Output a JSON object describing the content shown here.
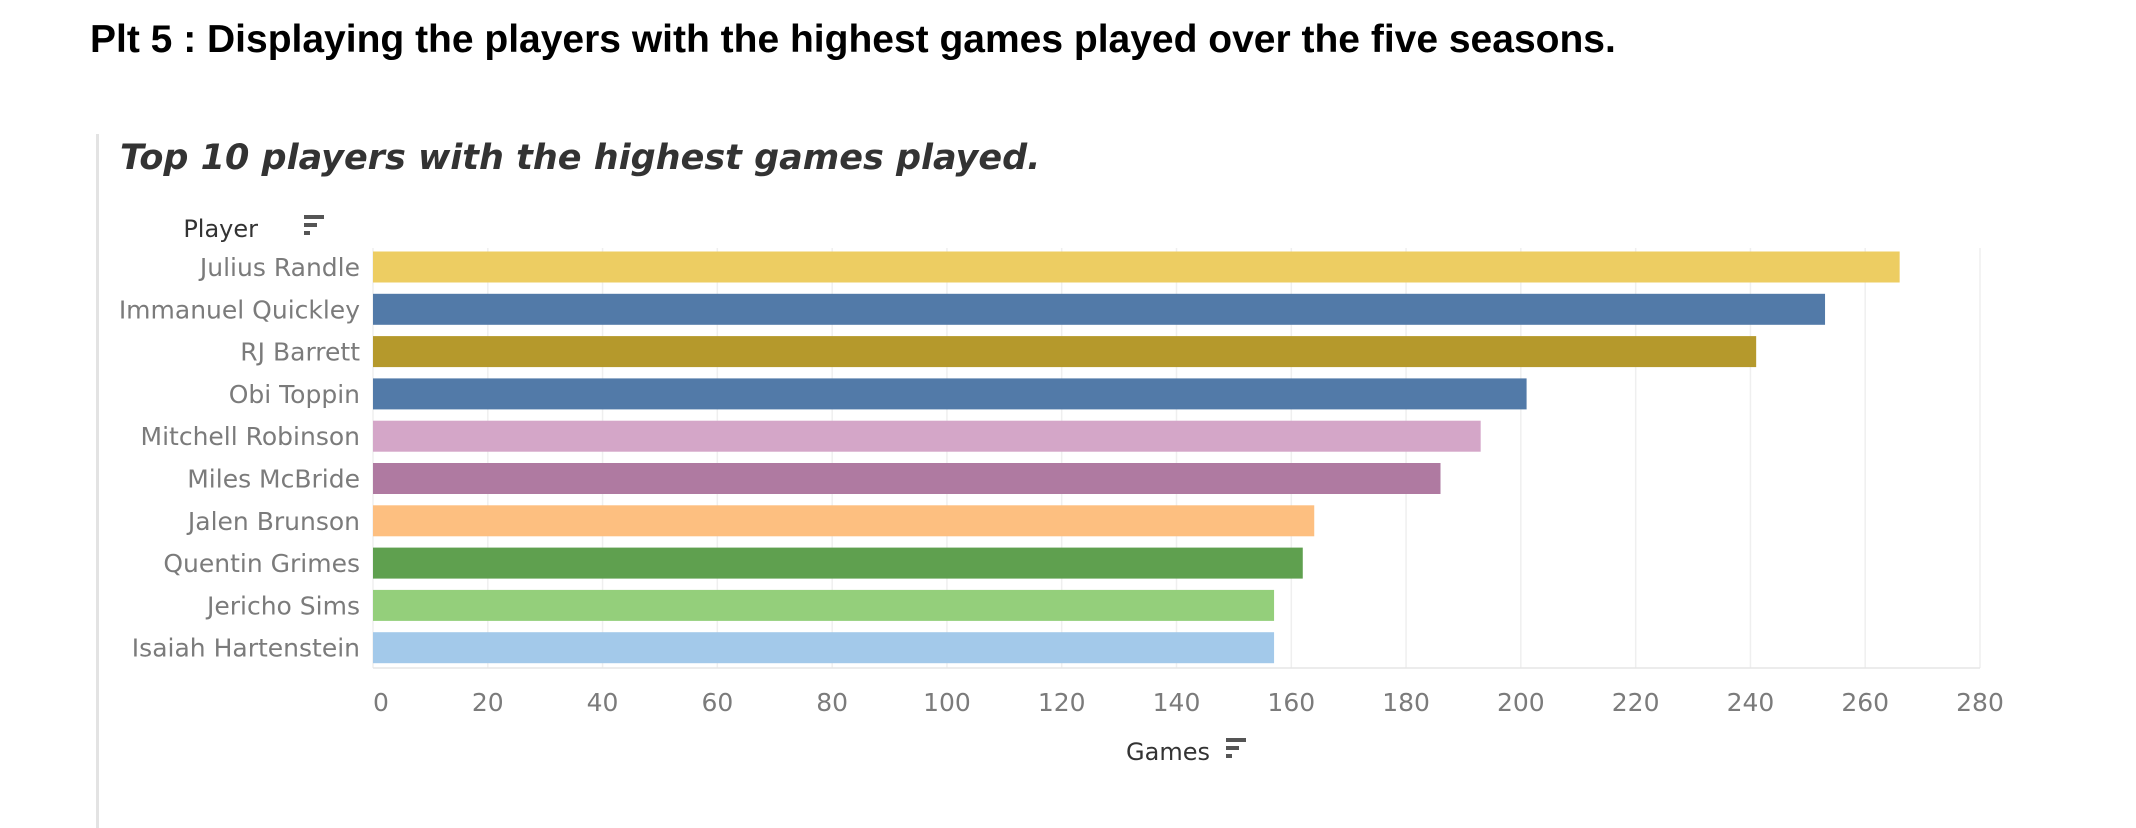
{
  "page": {
    "heading": "Plt 5 : Displaying the players with the highest games played over the five seasons."
  },
  "chart_data": {
    "type": "bar",
    "orientation": "horizontal",
    "title": "Top 10 players with the highest games played.",
    "ylabel": "Player",
    "xlabel": "Games",
    "categories": [
      "Julius Randle",
      "Immanuel Quickley",
      "RJ Barrett",
      "Obi Toppin",
      "Mitchell Robinson",
      "Miles McBride",
      "Jalen Brunson",
      "Quentin Grimes",
      "Jericho Sims",
      "Isaiah Hartenstein"
    ],
    "values": [
      266,
      253,
      241,
      201,
      193,
      186,
      164,
      162,
      157,
      157
    ],
    "colors": [
      "#EDCD62",
      "#527AA8",
      "#B5992C",
      "#527AA8",
      "#D4A6C8",
      "#AF7AA1",
      "#FDBF80",
      "#5FA04F",
      "#94CF7B",
      "#A3C9EA"
    ],
    "xlim": [
      0,
      280
    ],
    "xticks": [
      0,
      20,
      40,
      60,
      80,
      100,
      120,
      140,
      160,
      180,
      200,
      220,
      240,
      260,
      280
    ],
    "grid": true,
    "legend": "none",
    "sort_icons": [
      "sort-descending-icon",
      "sort-descending-icon"
    ]
  }
}
